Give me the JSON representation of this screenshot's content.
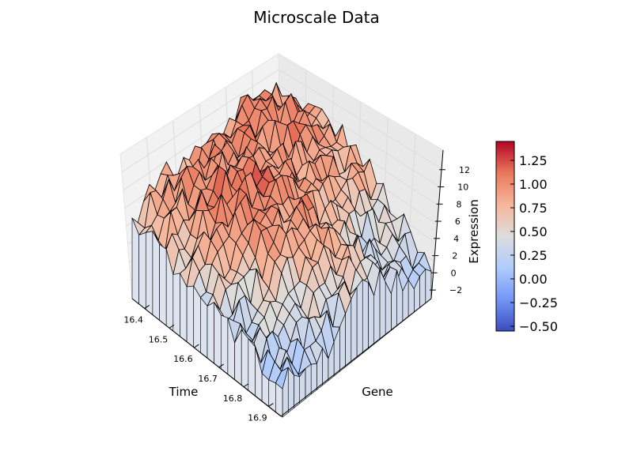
{
  "chart_data": {
    "type": "surface3d",
    "title": "Microscale Data",
    "xlabel": "Time",
    "ylabel": "Gene",
    "zlabel": "Expression",
    "x_ticks": [
      "16.4",
      "16.5",
      "16.6",
      "16.7",
      "16.8",
      "16.9"
    ],
    "z_ticks": [
      "-2",
      "0",
      "2",
      "4",
      "6",
      "8",
      "10",
      "12"
    ],
    "colorbar_ticks": [
      "1.25",
      "1.00",
      "0.75",
      "0.50",
      "0.25",
      "0.00",
      "−0.25",
      "−0.50"
    ],
    "colorbar_range": [
      -0.55,
      1.45
    ],
    "colormap": "coolwarm",
    "colormap_colors": [
      "#3b4cc0",
      "#7396f5",
      "#b0cbfc",
      "#dddddd",
      "#f6b69a",
      "#e9785d",
      "#b40426"
    ],
    "xlim": [
      16.35,
      16.95
    ],
    "zlim": [
      -3,
      14
    ]
  }
}
